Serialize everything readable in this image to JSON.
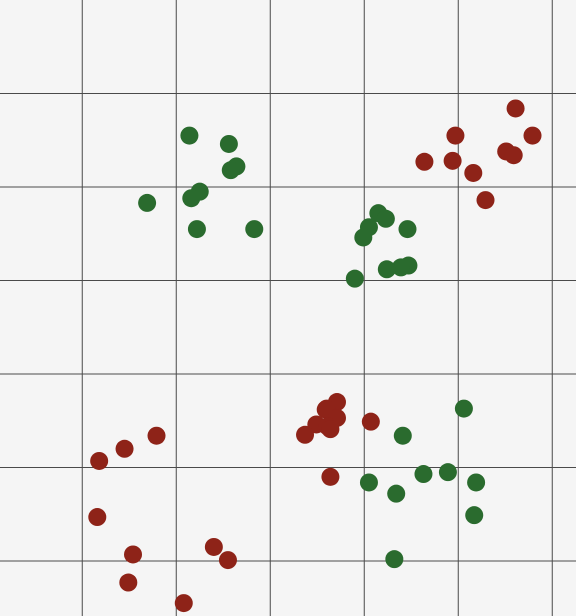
{
  "chart_data": {
    "type": "scatter",
    "grid": true,
    "xlim": [
      0,
      6.125
    ],
    "ylim": [
      -0.55,
      6.0
    ],
    "grid_step": 1,
    "colors": {
      "background": "#f5f5f5",
      "grid": "#4a4a4a"
    },
    "series": [
      {
        "color": "#8e2318",
        "points": [
          [
            4.61,
            4.84
          ],
          [
            3.97,
            4.55
          ],
          [
            4.79,
            4.55
          ],
          [
            3.64,
            4.27
          ],
          [
            3.94,
            4.28
          ],
          [
            4.51,
            4.38
          ],
          [
            4.59,
            4.34
          ],
          [
            4.16,
            4.15
          ],
          [
            4.29,
            3.86
          ],
          [
            2.71,
            1.7
          ],
          [
            2.59,
            1.62
          ],
          [
            2.6,
            1.63
          ],
          [
            2.71,
            1.53
          ],
          [
            2.49,
            1.46
          ],
          [
            2.61,
            1.44
          ],
          [
            2.64,
            1.41
          ],
          [
            2.37,
            1.35
          ],
          [
            3.07,
            1.49
          ],
          [
            2.64,
            0.9
          ],
          [
            0.79,
            1.34
          ],
          [
            0.45,
            1.2
          ],
          [
            0.18,
            1.07
          ],
          [
            0.16,
            0.47
          ],
          [
            0.54,
            0.07
          ],
          [
            1.4,
            0.15
          ],
          [
            1.55,
            0.01
          ],
          [
            0.49,
            -0.23
          ],
          [
            1.08,
            -0.45
          ]
        ]
      },
      {
        "color": "#2a6b2e",
        "points": [
          [
            1.14,
            4.55
          ],
          [
            1.56,
            4.46
          ],
          [
            1.64,
            4.22
          ],
          [
            1.58,
            4.18
          ],
          [
            1.25,
            3.95
          ],
          [
            1.16,
            3.88
          ],
          [
            0.69,
            3.83
          ],
          [
            1.22,
            3.55
          ],
          [
            1.83,
            3.55
          ],
          [
            3.15,
            3.72
          ],
          [
            3.23,
            3.66
          ],
          [
            3.05,
            3.57
          ],
          [
            2.99,
            3.46
          ],
          [
            3.46,
            3.55
          ],
          [
            3.47,
            3.16
          ],
          [
            3.39,
            3.14
          ],
          [
            3.24,
            3.12
          ],
          [
            2.9,
            3.02
          ],
          [
            4.06,
            1.63
          ],
          [
            3.41,
            1.34
          ],
          [
            3.63,
            0.93
          ],
          [
            3.89,
            0.95
          ],
          [
            4.19,
            0.84
          ],
          [
            3.05,
            0.84
          ],
          [
            3.34,
            0.72
          ],
          [
            4.17,
            0.49
          ],
          [
            3.32,
            0.02
          ]
        ]
      }
    ]
  }
}
